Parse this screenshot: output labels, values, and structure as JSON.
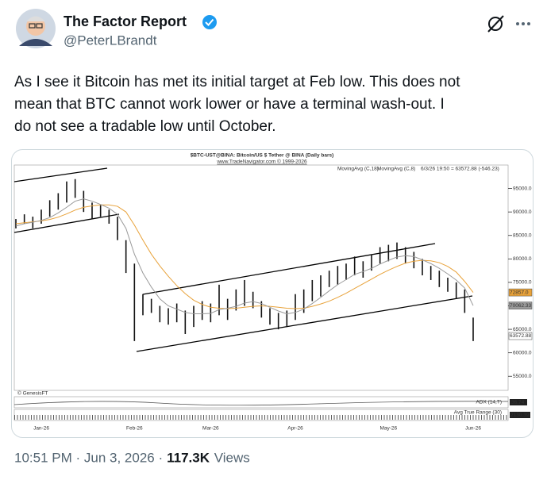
{
  "post": {
    "name": "The Factor Report",
    "handle": "@PeterLBrandt",
    "text_lines": [
      "As I see it Bitcoin has met its initial target at Feb low. This does not",
      "mean that BTC cannot work lower or have a terminal wash-out. I",
      "do not see a tradable low until October."
    ],
    "timestamp": "10:51 PM · Jun 3, 2026 ·",
    "views": "117.3K",
    "views_label": "Views"
  },
  "chart_data": {
    "type": "ohlc",
    "title": "$BTC-UST@BINA:  Bitcoin/US $ Tether @ BINA  (Daily bars)",
    "subtitle": "www.TradeNavigator.com © 1999-2026",
    "readout": "6/3/26 19:50 = 63572.88 (-546.23)",
    "source": "© GenesisFT",
    "color": "#111111",
    "categories": [
      null,
      null,
      null,
      "Jan-26",
      null,
      null,
      null,
      null,
      null,
      null,
      null,
      null,
      null,
      null,
      "Feb-26",
      null,
      null,
      null,
      null,
      null,
      null,
      null,
      null,
      "Mar-26",
      null,
      null,
      null,
      null,
      null,
      null,
      null,
      null,
      null,
      "Apr-26",
      null,
      null,
      null,
      null,
      null,
      null,
      null,
      null,
      null,
      null,
      "May-26",
      null,
      null,
      null,
      null,
      null,
      null,
      null,
      null,
      null,
      "Jun-26"
    ],
    "high": [
      88500,
      89500,
      89000,
      90500,
      92500,
      94000,
      96500,
      97000,
      94500,
      92000,
      91500,
      90500,
      89000,
      84000,
      79000,
      72500,
      71500,
      70000,
      69500,
      70500,
      69000,
      70000,
      71000,
      70500,
      74500,
      71500,
      73500,
      75500,
      73000,
      71000,
      69500,
      68500,
      69000,
      72500,
      73500,
      75500,
      76500,
      77500,
      78500,
      79000,
      80500,
      79500,
      81000,
      82500,
      83000,
      83500,
      82500,
      81500,
      80000,
      78500,
      77500,
      76000,
      75000,
      73500,
      67500
    ],
    "low": [
      86500,
      87500,
      86500,
      87500,
      89000,
      90500,
      92000,
      93000,
      90000,
      88500,
      89000,
      87500,
      84000,
      77000,
      62500,
      68000,
      68500,
      66500,
      66000,
      66500,
      64000,
      65500,
      67000,
      66500,
      68000,
      67000,
      69000,
      70000,
      69500,
      67500,
      66000,
      65000,
      65500,
      67000,
      68500,
      71000,
      72000,
      74000,
      74500,
      75500,
      76500,
      76000,
      77500,
      79000,
      79500,
      80000,
      79000,
      78000,
      76500,
      75500,
      74000,
      73000,
      71500,
      68500,
      62500
    ],
    "series": [
      {
        "name": "MovingAvg (C,18)",
        "color": "#e8a23a",
        "values": [
          87500,
          87700,
          87900,
          88100,
          88400,
          88900,
          89600,
          90400,
          91000,
          91300,
          91500,
          91500,
          91200,
          90000,
          87200,
          84000,
          81000,
          78500,
          76300,
          74300,
          72600,
          71200,
          70300,
          69700,
          69500,
          69400,
          69500,
          69700,
          69900,
          70000,
          69900,
          69700,
          69500,
          69400,
          69500,
          69900,
          70400,
          71000,
          71800,
          72700,
          73700,
          74700,
          75700,
          76700,
          77600,
          78400,
          79100,
          79500,
          79700,
          79600,
          79200,
          78400,
          77200,
          75200,
          72857
        ]
      },
      {
        "name": "MovingAvg (C,8)",
        "color": "#9a9a9a",
        "values": [
          87000,
          87500,
          87800,
          88200,
          88800,
          89800,
          91000,
          92300,
          92800,
          92300,
          91600,
          90800,
          89500,
          86500,
          81000,
          77000,
          74000,
          71500,
          70000,
          69300,
          68600,
          68300,
          68300,
          68400,
          69200,
          69500,
          69900,
          70600,
          70900,
          70500,
          69700,
          68900,
          68300,
          68600,
          69300,
          70500,
          71800,
          73200,
          74500,
          75600,
          76700,
          77300,
          78000,
          78900,
          79700,
          80400,
          80700,
          80500,
          79800,
          79000,
          78000,
          76800,
          75500,
          73800,
          70062.33
        ]
      }
    ],
    "markers": [
      {
        "value": 72857,
        "label": "72857.0",
        "color": "#e8a23a"
      },
      {
        "value": 70062.33,
        "label": "70062.33",
        "color": "#9a9a9a"
      },
      {
        "value": 63572.88,
        "label": "63572.88",
        "color": "#ffffff"
      }
    ],
    "indicators": [
      {
        "name": "ADX (14,T)",
        "value": 36.74
      },
      {
        "name": "Avg True Range (30)",
        "value": 2130.39
      }
    ],
    "ylim": [
      52000,
      100000
    ],
    "yticks": [
      {
        "value": 95000,
        "label": "95000.0"
      },
      {
        "value": 90000,
        "label": "90000.0"
      },
      {
        "value": 85000,
        "label": "85000.0"
      },
      {
        "value": 80000,
        "label": "80000.0"
      },
      {
        "value": 75000,
        "label": "75000.0"
      },
      {
        "value": 70000,
        "label": "70000.0"
      },
      {
        "value": 65000,
        "label": "65000.0"
      },
      {
        "value": 60000,
        "label": "60000.0"
      },
      {
        "value": 55000,
        "label": "55000.0"
      }
    ]
  }
}
